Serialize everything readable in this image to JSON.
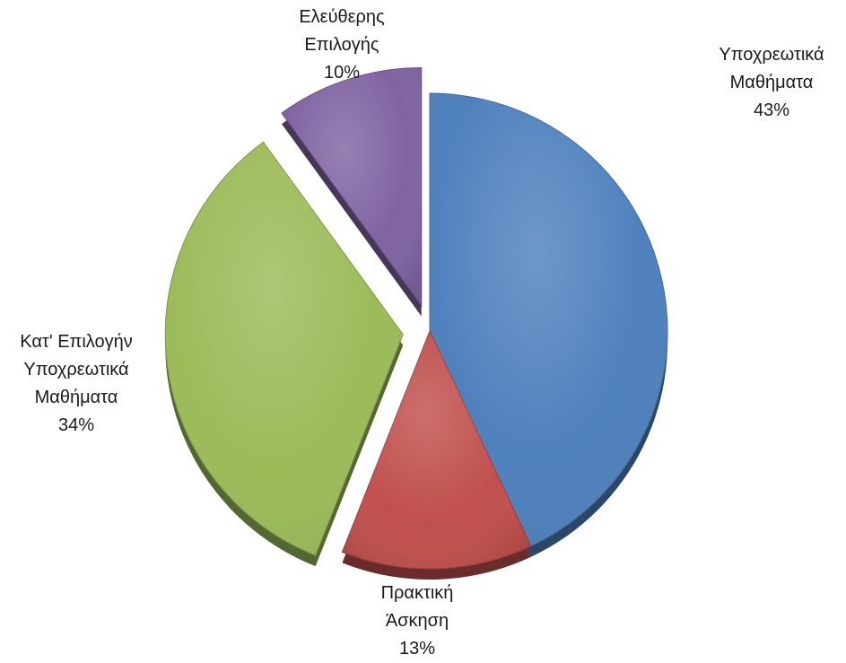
{
  "chart_data": {
    "type": "pie",
    "series": [
      {
        "slices": [
          {
            "name_lines": [
              "Υποχρεωτικά",
              "Μαθήματα"
            ],
            "pct_label": "43%",
            "value": 43,
            "color": "#4F81BD",
            "exploded": false
          },
          {
            "name_lines": [
              "Πρακτική",
              "Άσκηση"
            ],
            "pct_label": "13%",
            "value": 13,
            "color": "#C0504D",
            "exploded": false
          },
          {
            "name_lines": [
              "Κατ' Επιλογήν",
              "Υποχρεωτικά",
              "Μαθήματα"
            ],
            "pct_label": "34%",
            "value": 34,
            "color": "#9BBB59",
            "exploded": true
          },
          {
            "name_lines": [
              "Ελεύθερης",
              "Επιλογής"
            ],
            "pct_label": "10%",
            "value": 10,
            "color": "#8064A2",
            "exploded": true
          }
        ]
      }
    ],
    "start_angle": "12 o'clock",
    "direction": "clockwise",
    "legend": "none",
    "style": "3D beveled pie with exploded slices"
  }
}
